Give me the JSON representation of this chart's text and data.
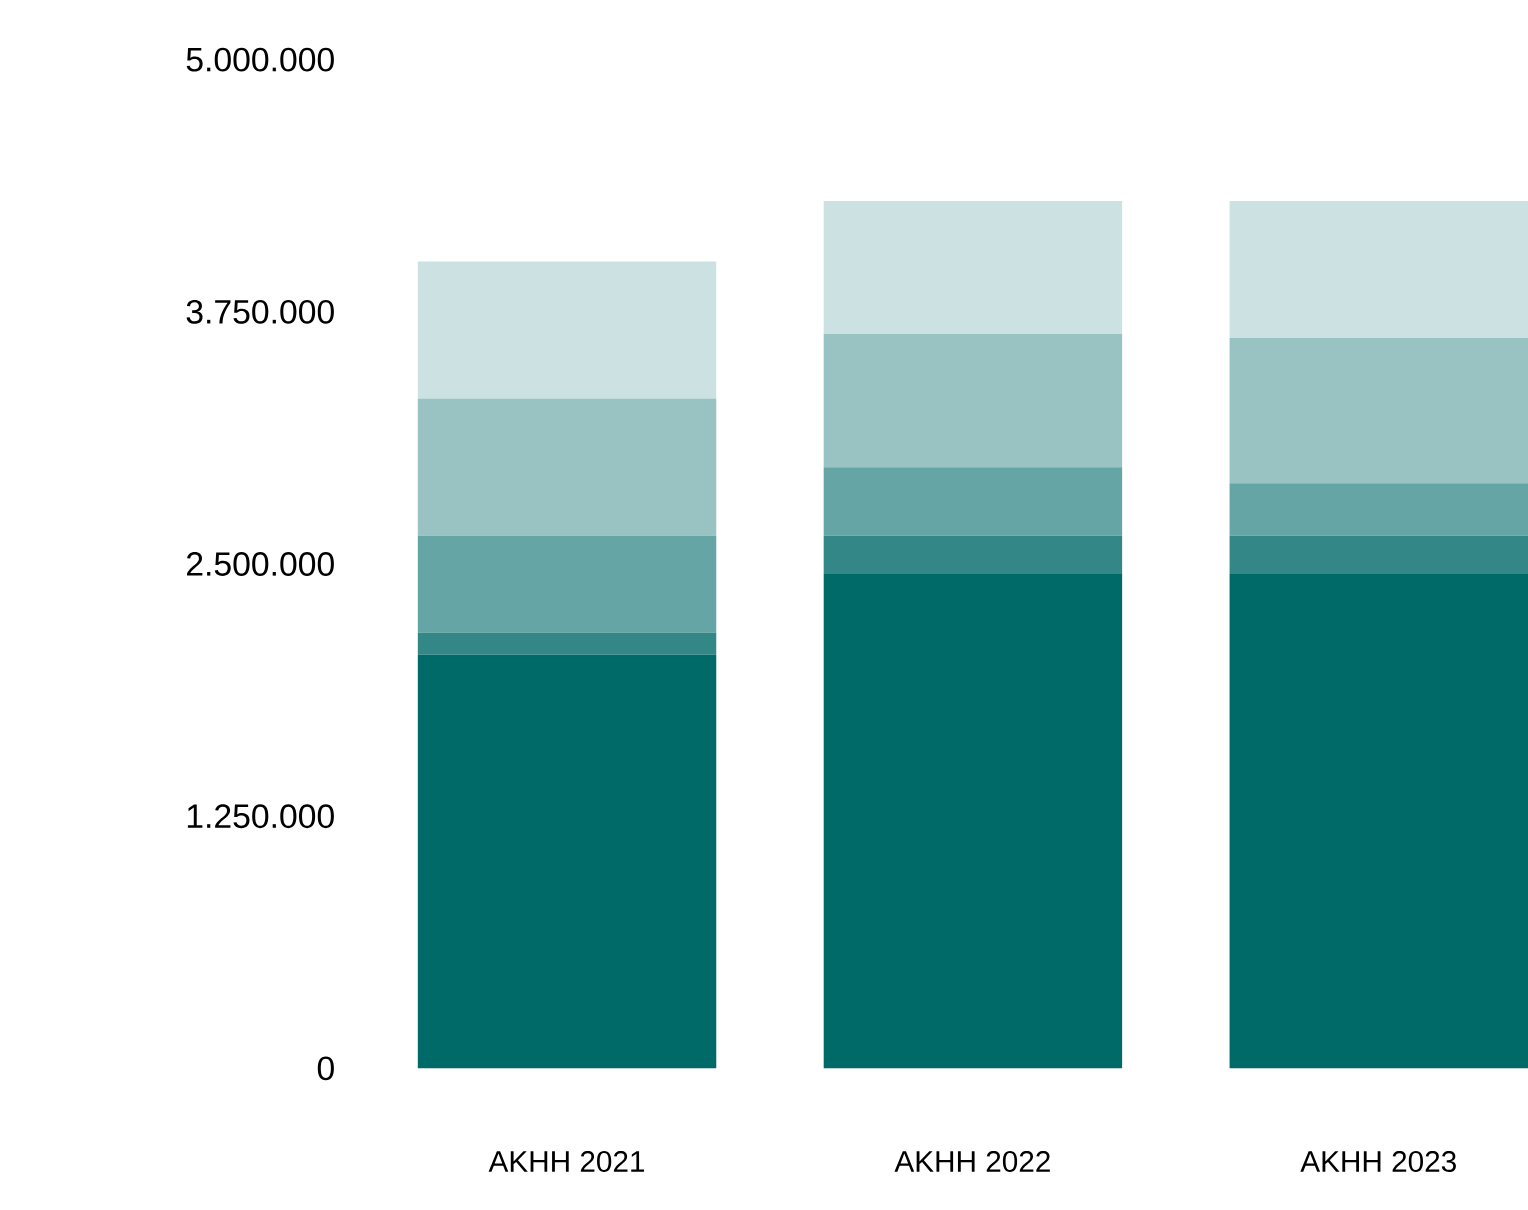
{
  "chart_data": {
    "type": "bar",
    "stacked": true,
    "categories": [
      "AKHH 2021",
      "AKHH 2022",
      "AKHH 2023"
    ],
    "series": [
      {
        "color": "#006a69",
        "values": [
          2050000,
          2450000,
          2450000
        ]
      },
      {
        "color": "#338887",
        "values": [
          110000,
          190000,
          190000
        ]
      },
      {
        "color": "#66a5a5",
        "values": [
          480000,
          340000,
          260000
        ]
      },
      {
        "color": "#99c3c3",
        "values": [
          680000,
          660000,
          720000
        ]
      },
      {
        "color": "#cce1e1",
        "values": [
          680000,
          660000,
          680000
        ]
      }
    ],
    "ylim": [
      0,
      5000000
    ],
    "yticks": [
      0,
      {
        "value": 1250000,
        "label": "1.250.000"
      },
      {
        "value": 2500000,
        "label": "2.500.000"
      },
      {
        "value": 3750000,
        "label": "3.750.000"
      },
      {
        "value": 5000000,
        "label": "5.000.000"
      }
    ]
  }
}
